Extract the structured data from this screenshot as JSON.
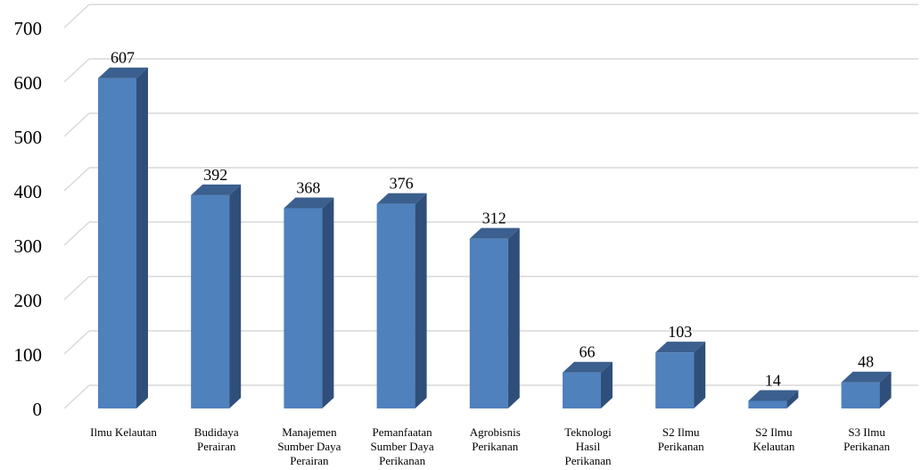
{
  "chart_data": {
    "type": "bar",
    "categories": [
      [
        "Ilmu Kelautan"
      ],
      [
        "Budidaya",
        "Perairan"
      ],
      [
        "Manajemen",
        "Sumber Daya",
        "Perairan"
      ],
      [
        "Pemanfaatan",
        "Sumber Daya",
        "Perikanan"
      ],
      [
        "Agrobisnis",
        "Perikanan"
      ],
      [
        "Teknologi",
        "Hasil",
        "Perikanan"
      ],
      [
        "S2 Ilmu",
        "Perikanan"
      ],
      [
        "S2 Ilmu",
        "Kelautan"
      ],
      [
        "S3 Ilmu",
        "Perikanan"
      ]
    ],
    "values": [
      607,
      392,
      368,
      376,
      312,
      66,
      103,
      14,
      48
    ],
    "ylim": [
      0,
      700
    ],
    "yticks": [
      0,
      100,
      200,
      300,
      400,
      500,
      600,
      700
    ],
    "grid": true,
    "style": "3d-column",
    "colors": {
      "front": "#4f81bd",
      "side": "#2f4f7a",
      "top": "#3b5f8e",
      "grid": "#d9d9d9",
      "text": "#000000"
    }
  }
}
